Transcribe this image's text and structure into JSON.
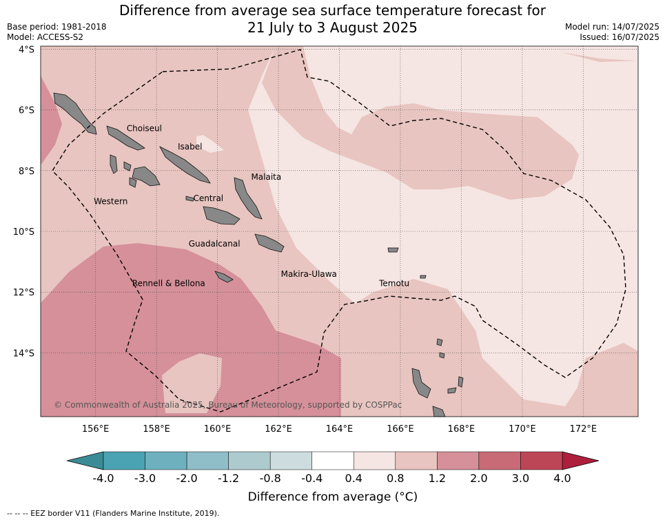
{
  "header": {
    "title_line1": "Difference from average sea surface temperature forecast for",
    "title_line2": "21 July to 3 August 2025",
    "base_period": "Base period: 1981-2018",
    "model": "Model: ACCESS-S2",
    "model_run": "Model run: 14/07/2025",
    "issued": "Issued: 16/07/2025"
  },
  "map": {
    "lon_range": [
      154.2,
      173.8
    ],
    "lat_range": [
      -16.1,
      -3.9
    ],
    "lat_ticks": [
      {
        "value": -4,
        "label": "4°S"
      },
      {
        "value": -6,
        "label": "6°S"
      },
      {
        "value": -8,
        "label": "8°S"
      },
      {
        "value": -10,
        "label": "10°S"
      },
      {
        "value": -12,
        "label": "12°S"
      },
      {
        "value": -14,
        "label": "14°S"
      }
    ],
    "lon_ticks": [
      {
        "value": 156,
        "label": "156°E"
      },
      {
        "value": 158,
        "label": "158°E"
      },
      {
        "value": 160,
        "label": "160°E"
      },
      {
        "value": 162,
        "label": "162°E"
      },
      {
        "value": 164,
        "label": "164°E"
      },
      {
        "value": 166,
        "label": "166°E"
      },
      {
        "value": 168,
        "label": "168°E"
      },
      {
        "value": 170,
        "label": "170°E"
      },
      {
        "value": 172,
        "label": "172°E"
      }
    ],
    "provinces": [
      {
        "name": "Choiseul",
        "lon": 157.6,
        "lat": -6.7
      },
      {
        "name": "Isabel",
        "lon": 159.1,
        "lat": -7.3
      },
      {
        "name": "Malaita",
        "lon": 161.6,
        "lat": -8.3
      },
      {
        "name": "Western",
        "lon": 156.5,
        "lat": -9.1
      },
      {
        "name": "Central",
        "lon": 159.7,
        "lat": -9.0
      },
      {
        "name": "Guadalcanal",
        "lon": 159.9,
        "lat": -10.5
      },
      {
        "name": "Makira-Ulawa",
        "lon": 163.0,
        "lat": -11.5
      },
      {
        "name": "Rennell & Bellona",
        "lon": 158.4,
        "lat": -11.8
      },
      {
        "name": "Temotu",
        "lon": 165.8,
        "lat": -11.8
      }
    ],
    "grid": true,
    "copyright": "© Commonwealth of Australia 2025, Bureau of Meteorology, supported by COSPPac"
  },
  "colorbar": {
    "title": "Difference from average (°C)",
    "boundaries": [
      "-4.0",
      "-3.0",
      "-2.0",
      "-1.2",
      "-0.8",
      "-0.4",
      "0.4",
      "0.8",
      "1.2",
      "2.0",
      "3.0",
      "4.0"
    ],
    "colors": [
      "#4aa3b3",
      "#6fb0bf",
      "#8fbec8",
      "#adcbcf",
      "#cddcdf",
      "#ffffff",
      "#f5e5e3",
      "#e8c5c0",
      "#d5909a",
      "#c86b77",
      "#bd4656"
    ],
    "extend_low_color": "#3a8b96",
    "extend_high_color": "#ad1f3c"
  },
  "footer": {
    "eez_note": "--  --  -- EEZ border V11 (Flanders Marine Institute, 2019)."
  }
}
